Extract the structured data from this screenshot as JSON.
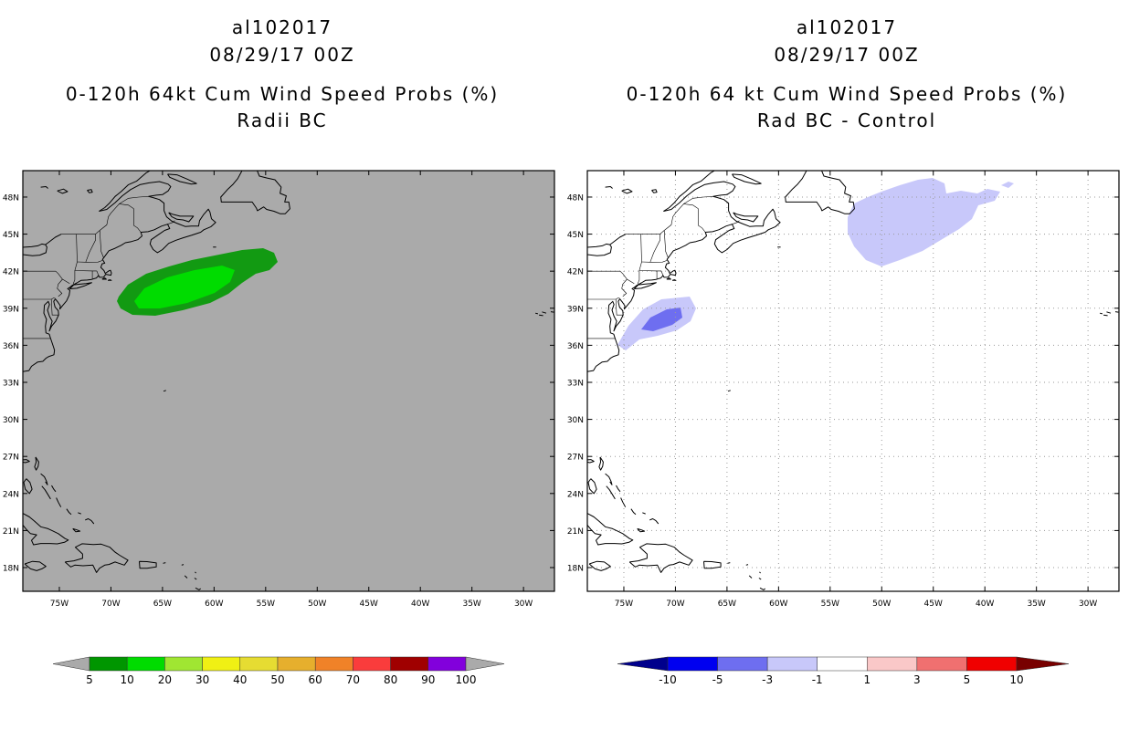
{
  "panels": {
    "left": {
      "title_line1": "al102017",
      "title_line2": "08/29/17 00Z",
      "title_line3": "0-120h 64kt Cum Wind Speed Probs (%)",
      "title_line4": "Radii BC",
      "background": "#aaaaaa",
      "grid": false
    },
    "right": {
      "title_line1": "al102017",
      "title_line2": "08/29/17 00Z",
      "title_line3": "0-120h 64 kt Cum Wind Speed Probs (%)",
      "title_line4": "Rad BC - Control",
      "background": "#ffffff",
      "grid": true
    }
  },
  "map": {
    "lon_range": [
      -78.54,
      -27.0
    ],
    "lat_range": [
      16.08,
      50.14
    ],
    "lat_ticks": [
      {
        "value": 48,
        "label": "48N"
      },
      {
        "value": 45,
        "label": "45N"
      },
      {
        "value": 42,
        "label": "42N"
      },
      {
        "value": 39,
        "label": "39N"
      },
      {
        "value": 36,
        "label": "36N"
      },
      {
        "value": 33,
        "label": "33N"
      },
      {
        "value": 30,
        "label": "30N"
      },
      {
        "value": 27,
        "label": "27N"
      },
      {
        "value": 24,
        "label": "24N"
      },
      {
        "value": 21,
        "label": "21N"
      },
      {
        "value": 18,
        "label": "18N"
      }
    ],
    "lon_ticks": [
      {
        "value": -75,
        "label": "75W"
      },
      {
        "value": -70,
        "label": "70W"
      },
      {
        "value": -65,
        "label": "65W"
      },
      {
        "value": -60,
        "label": "60W"
      },
      {
        "value": -55,
        "label": "55W"
      },
      {
        "value": -50,
        "label": "50W"
      },
      {
        "value": -45,
        "label": "45W"
      },
      {
        "value": -40,
        "label": "40W"
      },
      {
        "value": -35,
        "label": "35W"
      },
      {
        "value": -30,
        "label": "30W"
      }
    ]
  },
  "fills": {
    "left_outer": "#129a12",
    "left_inner": "#00dc00",
    "right_light": "#c8c8fa",
    "right_medium": "#6e6ef0"
  },
  "colorbars": {
    "left": {
      "labels": [
        "5",
        "10",
        "20",
        "30",
        "40",
        "50",
        "60",
        "70",
        "80",
        "90",
        "100"
      ],
      "colors": [
        "#009600",
        "#00dc00",
        "#a0e632",
        "#f0f014",
        "#e6dc32",
        "#e6af2d",
        "#f08228",
        "#fa3c3c",
        "#a00000",
        "#8200dc"
      ],
      "under_color": "#aaaaaa",
      "over_color": "#aaaaaa"
    },
    "right": {
      "labels": [
        "-10",
        "-5",
        "-3",
        "-1",
        "1",
        "3",
        "5",
        "10"
      ],
      "colors": [
        "#0000f0",
        "#6e6ef0",
        "#c8c8fa",
        "#ffffff",
        "#fac8c8",
        "#f07070",
        "#f00000"
      ],
      "under_color": "#00008c",
      "over_color": "#780000"
    }
  }
}
